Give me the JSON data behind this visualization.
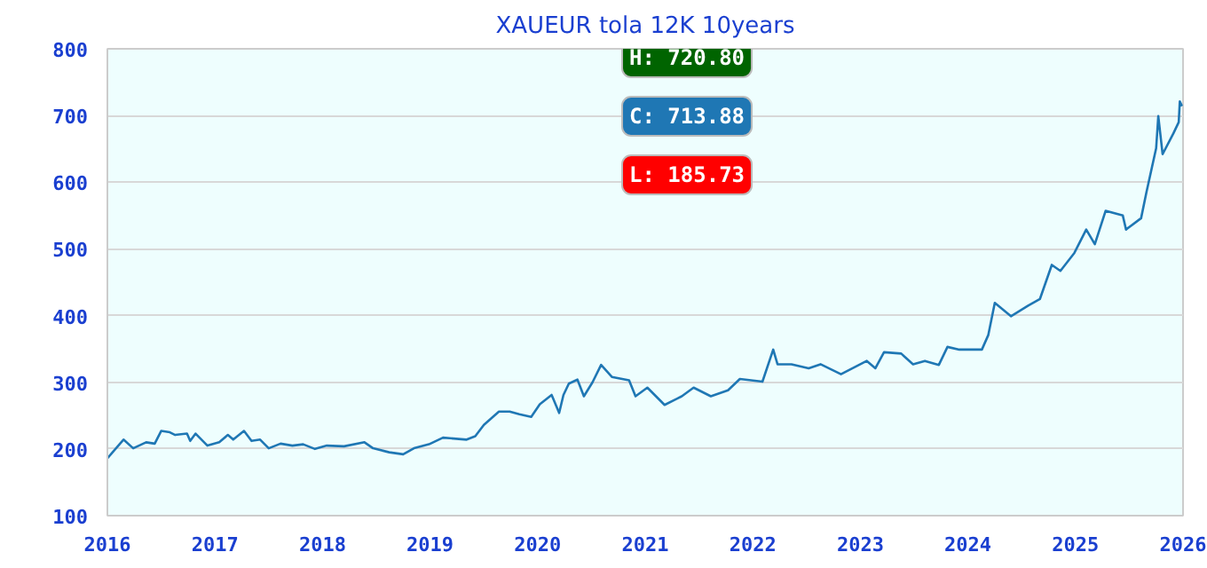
{
  "chart_data": {
    "type": "line",
    "title": "XAUEUR tola 12K 10years",
    "x": [
      2016.0,
      2016.15,
      2016.24,
      2016.36,
      2016.44,
      2016.5,
      2016.58,
      2016.63,
      2016.74,
      2016.77,
      2016.82,
      2016.93,
      2017.04,
      2017.12,
      2017.17,
      2017.27,
      2017.34,
      2017.42,
      2017.5,
      2017.61,
      2017.72,
      2017.82,
      2017.93,
      2018.04,
      2018.2,
      2018.39,
      2018.47,
      2018.62,
      2018.75,
      2018.85,
      2018.99,
      2019.12,
      2019.34,
      2019.42,
      2019.5,
      2019.64,
      2019.74,
      2019.83,
      2019.94,
      2020.02,
      2020.13,
      2020.2,
      2020.24,
      2020.29,
      2020.37,
      2020.43,
      2020.51,
      2020.59,
      2020.69,
      2020.85,
      2020.91,
      2021.02,
      2021.18,
      2021.34,
      2021.45,
      2021.61,
      2021.77,
      2021.88,
      2022.09,
      2022.19,
      2022.23,
      2022.36,
      2022.52,
      2022.63,
      2022.82,
      2023.06,
      2023.14,
      2023.22,
      2023.38,
      2023.49,
      2023.6,
      2023.73,
      2023.81,
      2023.92,
      2024.13,
      2024.19,
      2024.25,
      2024.4,
      2024.56,
      2024.67,
      2024.78,
      2024.86,
      2024.99,
      2025.1,
      2025.18,
      2025.28,
      2025.44,
      2025.47,
      2025.61,
      2025.66,
      2025.75,
      2025.77,
      2025.81,
      2025.91,
      2025.96,
      2025.97,
      2025.99
    ],
    "series": [
      {
        "color": "#1f77b4",
        "values": [
          186,
          214,
          201,
          210,
          208,
          227,
          225,
          221,
          223,
          212,
          223,
          205,
          210,
          221,
          214,
          227,
          212,
          214,
          201,
          208,
          205,
          207,
          200,
          205,
          204,
          210,
          201,
          195,
          192,
          201,
          207,
          217,
          214,
          219,
          236,
          256,
          256,
          252,
          248,
          267,
          281,
          254,
          281,
          298,
          304,
          279,
          300,
          326,
          308,
          303,
          279,
          292,
          266,
          279,
          292,
          279,
          288,
          305,
          301,
          349,
          327,
          327,
          321,
          327,
          312,
          332,
          321,
          345,
          343,
          327,
          332,
          326,
          353,
          349,
          349,
          371,
          419,
          399,
          415,
          425,
          476,
          467,
          494,
          529,
          507,
          557,
          550,
          529,
          546,
          585,
          651,
          699,
          642,
          673,
          690,
          721,
          714
        ]
      }
    ],
    "xlim": [
      2016,
      2026
    ],
    "xticks": [
      2016,
      2017,
      2018,
      2019,
      2020,
      2021,
      2022,
      2023,
      2024,
      2025,
      2026
    ],
    "ylim": [
      100,
      800
    ],
    "yticks": [
      100,
      200,
      300,
      400,
      500,
      600,
      700,
      800
    ],
    "grid": "y",
    "annotations": [
      "H: 720.80",
      "C: 713.88",
      "L: 185.73"
    ]
  }
}
